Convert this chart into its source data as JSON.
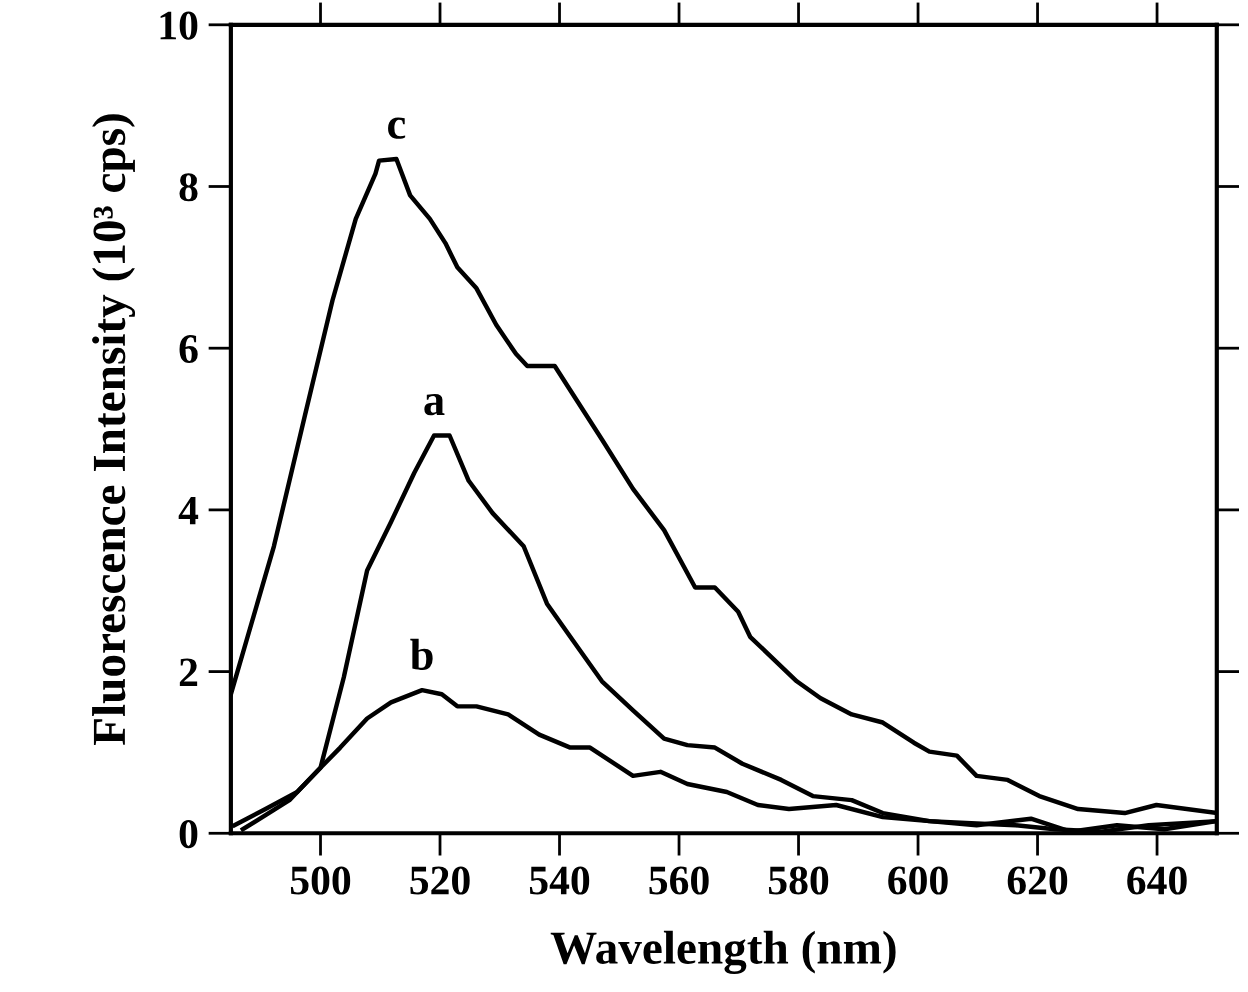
{
  "chart_data": {
    "type": "line",
    "xlabel": "Wavelength (nm)",
    "ylabel": "Fluorescence Intensity (10³ cps)",
    "xlim": [
      485,
      650
    ],
    "ylim": [
      0,
      10
    ],
    "xticks": [
      500,
      520,
      540,
      560,
      580,
      600,
      620,
      640
    ],
    "yticks": [
      0,
      2,
      4,
      6,
      8,
      10
    ],
    "grid": false,
    "legend": false,
    "marker": "none",
    "line_style": "solid",
    "series": [
      {
        "name": "a",
        "color": "#000000",
        "x": [
          487,
          494.8,
          500,
          503.9,
          507.8,
          511.8,
          515.7,
          519,
          521.6,
          524.8,
          528.8,
          534,
          537.9,
          541.8,
          547.1,
          552.3,
          557.5,
          561.4,
          566,
          570.6,
          577.1,
          582.4,
          588.9,
          594.1,
          601.9,
          609.8,
          616.3,
          622.9,
          630.7,
          638.6,
          650
        ],
        "values": [
          0.05,
          0.41,
          0.81,
          1.93,
          3.25,
          3.85,
          4.46,
          4.92,
          4.92,
          4.36,
          3.96,
          3.55,
          2.84,
          2.43,
          1.88,
          1.52,
          1.17,
          1.09,
          1.06,
          0.86,
          0.66,
          0.46,
          0.41,
          0.25,
          0.15,
          0.12,
          0.1,
          0.05,
          0.02,
          0.1,
          0.15
        ]
      },
      {
        "name": "b",
        "color": "#000000",
        "x": [
          485.6,
          490.8,
          496.1,
          500,
          503.3,
          507.8,
          511.8,
          517,
          520.3,
          522.9,
          526.1,
          531.4,
          536.6,
          541.8,
          545.1,
          552.3,
          556.9,
          561.4,
          568,
          573.2,
          578.4,
          586.3,
          594.1,
          601.9,
          609.8,
          618.9,
          625.5,
          633.3,
          641.2,
          650
        ],
        "values": [
          0.1,
          0.3,
          0.51,
          0.81,
          1.06,
          1.42,
          1.62,
          1.77,
          1.72,
          1.57,
          1.57,
          1.47,
          1.22,
          1.06,
          1.06,
          0.71,
          0.76,
          0.61,
          0.51,
          0.35,
          0.3,
          0.35,
          0.2,
          0.15,
          0.1,
          0.18,
          0.02,
          0.1,
          0.05,
          0.15
        ]
      },
      {
        "name": "c",
        "color": "#000000",
        "x": [
          485,
          492.2,
          497.4,
          502,
          505.9,
          509.2,
          509.8,
          512.7,
          515,
          518.3,
          520.9,
          522.9,
          526.1,
          529.4,
          532.7,
          534.6,
          539.2,
          541.8,
          547.1,
          552.3,
          557.5,
          562.7,
          566,
          569.9,
          571.9,
          579.7,
          583.7,
          588.9,
          594.1,
          599.3,
          601.9,
          606.5,
          609.8,
          615,
          620.3,
          626.8,
          634.6,
          639.9,
          650
        ],
        "values": [
          1.72,
          3.55,
          5.17,
          6.59,
          7.6,
          8.16,
          8.32,
          8.34,
          7.89,
          7.6,
          7.3,
          7.0,
          6.74,
          6.29,
          5.93,
          5.78,
          5.78,
          5.48,
          4.87,
          4.26,
          3.75,
          3.04,
          3.04,
          2.74,
          2.43,
          1.88,
          1.67,
          1.47,
          1.37,
          1.12,
          1.01,
          0.96,
          0.71,
          0.66,
          0.46,
          0.3,
          0.25,
          0.35,
          0.25
        ]
      }
    ]
  }
}
